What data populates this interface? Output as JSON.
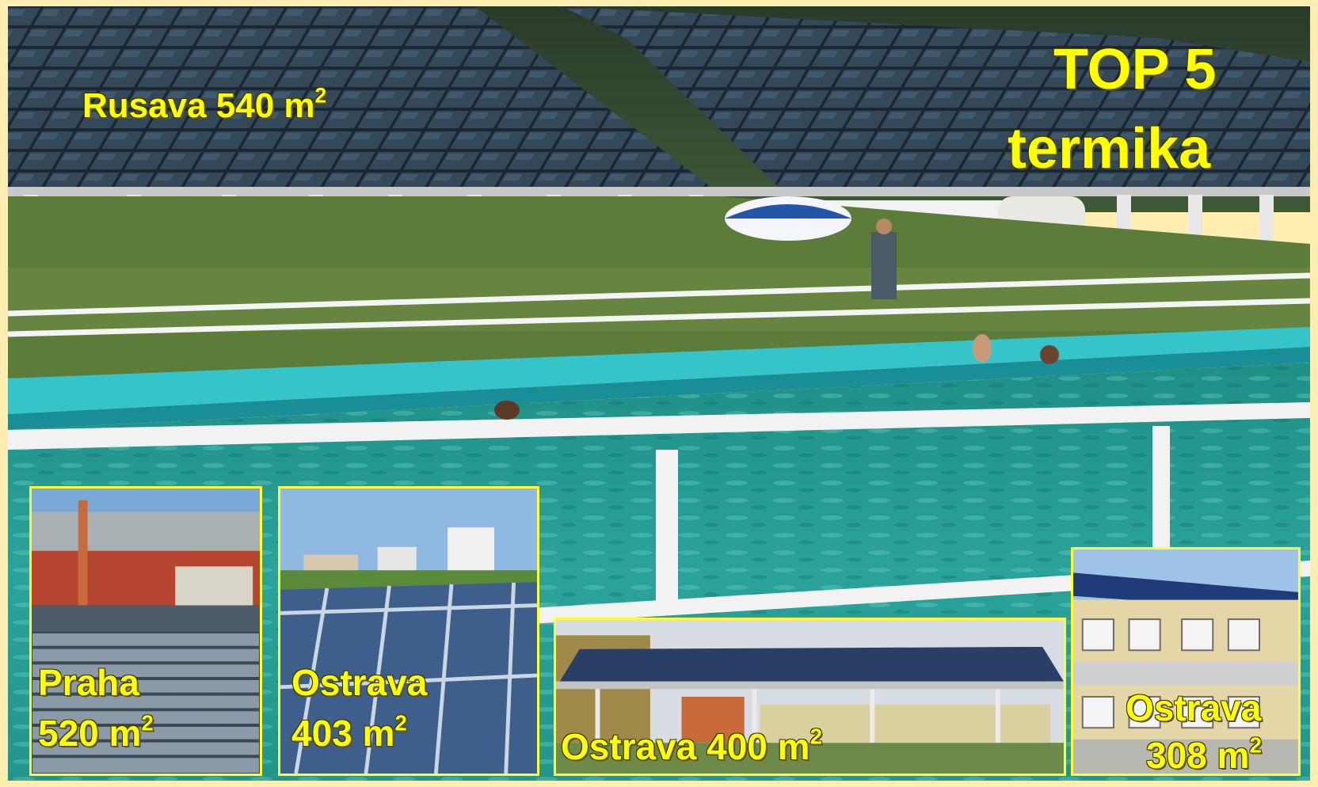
{
  "main": {
    "title_line1": "TOP 5",
    "title_line2": "termika",
    "label": {
      "name": "Rusava",
      "value": "540 m",
      "exp": "2"
    }
  },
  "tiles": [
    {
      "name": "Praha",
      "value": "520 m",
      "exp": "2"
    },
    {
      "name": "Ostrava",
      "value": "403 m",
      "exp": "2"
    },
    {
      "name": "Ostrava",
      "value": "400 m",
      "exp": "2"
    },
    {
      "name": "Ostrava",
      "value": "308 m",
      "exp": "2"
    }
  ],
  "colors": {
    "label": "#ffff00",
    "border": "#ffff33",
    "frame": "#ffeeb0",
    "water": "#2aa39a"
  }
}
